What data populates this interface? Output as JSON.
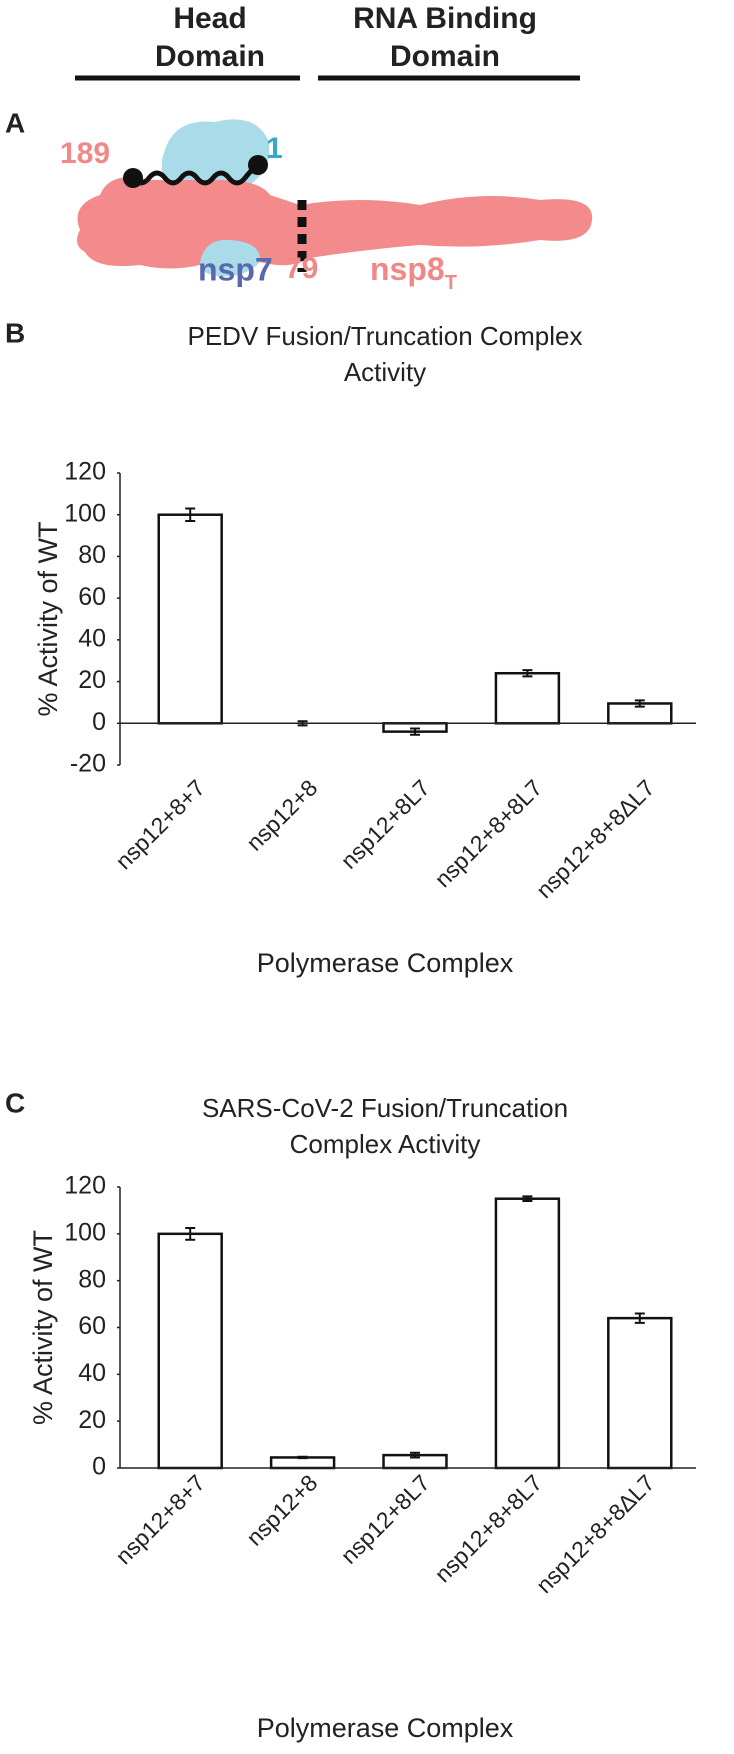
{
  "diagram": {
    "panel": "A",
    "head_domain": [
      "Head",
      "Domain"
    ],
    "rna_domain": [
      "RNA Binding",
      "Domain"
    ],
    "residue_start": "189",
    "residue_end": "1",
    "nsp7_label": "nsp7",
    "residue_cut": "79",
    "nsp8_label": "nsp8",
    "nsp8_subscript": "T"
  },
  "chart_data": [
    {
      "type": "bar",
      "panel": "B",
      "title": "PEDV Fusion/Truncation Complex Activity",
      "x_label": "Polymerase Complex",
      "y_label": "% Activity of WT",
      "categories": [
        "nsp12+8+7",
        "nsp12+8",
        "nsp12+8L7",
        "nsp12+8+8L7",
        "nsp12+8+8ΔL7"
      ],
      "values": [
        100,
        0,
        -4,
        24,
        9.5
      ],
      "errors": [
        3,
        1,
        1.5,
        1.5,
        1.5
      ],
      "color": "#ffffff",
      "ylim": [
        -20,
        120
      ],
      "yticks": [
        -20,
        0,
        20,
        40,
        60,
        80,
        100,
        120
      ]
    },
    {
      "type": "bar",
      "panel": "C",
      "title": "SARS-CoV-2 Fusion/Truncation Complex Activity",
      "x_label": "Polymerase Complex",
      "y_label": "% Activity of WT",
      "categories": [
        "nsp12+8+7",
        "nsp12+8",
        "nsp12+8L7",
        "nsp12+8+8L7",
        "nsp12+8+8ΔL7"
      ],
      "values": [
        100,
        4.5,
        5.5,
        115,
        64
      ],
      "errors": [
        2.5,
        0.3,
        1,
        1,
        2
      ],
      "color": "#ffffff",
      "ylim": [
        0,
        120
      ],
      "yticks": [
        0,
        20,
        40,
        60,
        80,
        100,
        120
      ]
    }
  ]
}
